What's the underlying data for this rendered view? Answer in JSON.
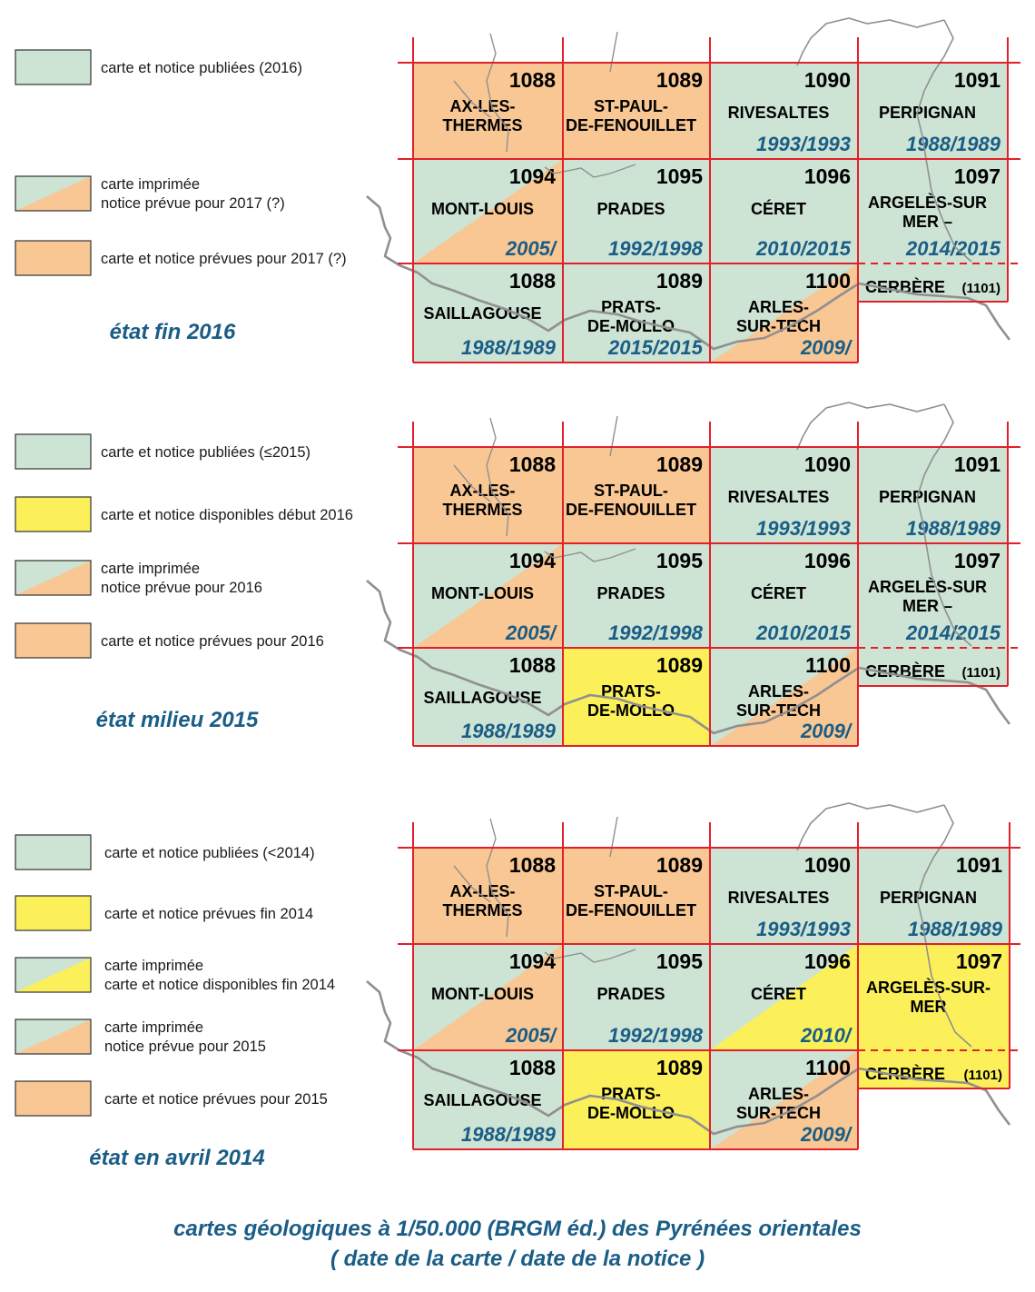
{
  "colors": {
    "green": "#cde3d4",
    "orange": "#f8c793",
    "yellow": "#fbf05a",
    "grid_red": "#e2202a",
    "border_gray": "#909090",
    "title_blue": "#1a5d86"
  },
  "panels": [
    {
      "state_label": "état fin 2016",
      "legend": [
        {
          "style": "green",
          "text": [
            "carte et notice publiées (2016)"
          ]
        },
        {
          "style": "green-orange",
          "text": [
            "carte imprimée",
            "notice prévue pour 2017 (?)"
          ]
        },
        {
          "style": "orange",
          "text": [
            "carte et notice prévues pour 2017 (?)"
          ]
        }
      ],
      "tiles": [
        {
          "number": "1088",
          "name": [
            "AX-LES-",
            "THERMES"
          ],
          "dates": "",
          "fill": "orange"
        },
        {
          "number": "1089",
          "name": [
            "ST-PAUL-",
            "DE-FENOUILLET"
          ],
          "dates": "",
          "fill": "orange"
        },
        {
          "number": "1090",
          "name": [
            "RIVESALTES"
          ],
          "dates": "1993/1993",
          "fill": "green"
        },
        {
          "number": "1091",
          "name": [
            "PERPIGNAN"
          ],
          "dates": "1988/1989",
          "fill": "green"
        },
        {
          "number": "1094",
          "name": [
            "MONT-LOUIS"
          ],
          "dates": "2005/",
          "fill": "green-orange"
        },
        {
          "number": "1095",
          "name": [
            "PRADES"
          ],
          "dates": "1992/1998",
          "fill": "green"
        },
        {
          "number": "1096",
          "name": [
            "CÉRET"
          ],
          "dates": "2010/2015",
          "fill": "green"
        },
        {
          "number": "1097",
          "name": [
            "ARGELÈS-SUR",
            "MER –"
          ],
          "dates": "2014/2015",
          "fill": "green"
        },
        {
          "number": "1088",
          "name": [
            "SAILLAGOUSE"
          ],
          "dates": "1988/1989",
          "fill": "green"
        },
        {
          "number": "1089",
          "name": [
            "PRATS-",
            "DE-MOLLO"
          ],
          "dates": "2015/2015",
          "fill": "green"
        },
        {
          "number": "1100",
          "name": [
            "ARLES-",
            "SUR-TECH"
          ],
          "dates": "2009/",
          "fill": "green-orange"
        },
        {
          "number": "",
          "name": [
            "CERBÈRE"
          ],
          "dates": "",
          "extra": "(1101)",
          "fill": "green"
        }
      ]
    },
    {
      "state_label": "état milieu 2015",
      "legend": [
        {
          "style": "green",
          "text": [
            "carte et notice publiées (≤2015)"
          ]
        },
        {
          "style": "yellow",
          "text": [
            "carte et notice disponibles début 2016"
          ]
        },
        {
          "style": "green-orange",
          "text": [
            "carte imprimée",
            "notice prévue pour 2016"
          ]
        },
        {
          "style": "orange",
          "text": [
            "carte et notice prévues pour 2016"
          ]
        }
      ],
      "tiles": [
        {
          "number": "1088",
          "name": [
            "AX-LES-",
            "THERMES"
          ],
          "dates": "",
          "fill": "orange"
        },
        {
          "number": "1089",
          "name": [
            "ST-PAUL-",
            "DE-FENOUILLET"
          ],
          "dates": "",
          "fill": "orange"
        },
        {
          "number": "1090",
          "name": [
            "RIVESALTES"
          ],
          "dates": "1993/1993",
          "fill": "green"
        },
        {
          "number": "1091",
          "name": [
            "PERPIGNAN"
          ],
          "dates": "1988/1989",
          "fill": "green"
        },
        {
          "number": "1094",
          "name": [
            "MONT-LOUIS"
          ],
          "dates": "2005/",
          "fill": "green-orange"
        },
        {
          "number": "1095",
          "name": [
            "PRADES"
          ],
          "dates": "1992/1998",
          "fill": "green"
        },
        {
          "number": "1096",
          "name": [
            "CÉRET"
          ],
          "dates": "2010/2015",
          "fill": "green"
        },
        {
          "number": "1097",
          "name": [
            "ARGELÈS-SUR",
            "MER –"
          ],
          "dates": "2014/2015",
          "fill": "green"
        },
        {
          "number": "1088",
          "name": [
            "SAILLAGOUSE"
          ],
          "dates": "1988/1989",
          "fill": "green"
        },
        {
          "number": "1089",
          "name": [
            "PRATS-",
            "DE-MOLLO"
          ],
          "dates": "",
          "fill": "yellow"
        },
        {
          "number": "1100",
          "name": [
            "ARLES-",
            "SUR-TECH"
          ],
          "dates": "2009/",
          "fill": "green-orange"
        },
        {
          "number": "",
          "name": [
            "CERBÈRE"
          ],
          "dates": "",
          "extra": "(1101)",
          "fill": "green"
        }
      ]
    },
    {
      "state_label": "état en avril 2014",
      "legend": [
        {
          "style": "green",
          "text": [
            "carte et notice publiées (<2014)"
          ]
        },
        {
          "style": "yellow",
          "text": [
            "carte et notice prévues fin 2014"
          ]
        },
        {
          "style": "green-yellow",
          "text": [
            "carte imprimée",
            "carte et notice disponibles fin 2014"
          ]
        },
        {
          "style": "green-orange",
          "text": [
            "carte imprimée",
            "notice prévue pour 2015"
          ]
        },
        {
          "style": "orange",
          "text": [
            "carte et notice prévues pour 2015"
          ]
        }
      ],
      "tiles": [
        {
          "number": "1088",
          "name": [
            "AX-LES-",
            "THERMES"
          ],
          "dates": "",
          "fill": "orange"
        },
        {
          "number": "1089",
          "name": [
            "ST-PAUL-",
            "DE-FENOUILLET"
          ],
          "dates": "",
          "fill": "orange"
        },
        {
          "number": "1090",
          "name": [
            "RIVESALTES"
          ],
          "dates": "1993/1993",
          "fill": "green"
        },
        {
          "number": "1091",
          "name": [
            "PERPIGNAN"
          ],
          "dates": "1988/1989",
          "fill": "green"
        },
        {
          "number": "1094",
          "name": [
            "MONT-LOUIS"
          ],
          "dates": "2005/",
          "fill": "green-orange"
        },
        {
          "number": "1095",
          "name": [
            "PRADES"
          ],
          "dates": "1992/1998",
          "fill": "green"
        },
        {
          "number": "1096",
          "name": [
            "CÉRET"
          ],
          "dates": "2010/",
          "fill": "green-yellow"
        },
        {
          "number": "1097",
          "name": [
            "ARGELÈS-SUR-",
            "MER"
          ],
          "dates": "",
          "fill": "yellow"
        },
        {
          "number": "1088",
          "name": [
            "SAILLAGOUSE"
          ],
          "dates": "1988/1989",
          "fill": "green"
        },
        {
          "number": "1089",
          "name": [
            "PRATS-",
            "DE-MOLLO"
          ],
          "dates": "",
          "fill": "yellow"
        },
        {
          "number": "1100",
          "name": [
            "ARLES-",
            "SUR-TECH"
          ],
          "dates": "2009/",
          "fill": "green-orange"
        },
        {
          "number": "",
          "name": [
            "CERBÈRE"
          ],
          "dates": "",
          "extra": "(1101)",
          "fill": "yellow"
        }
      ]
    }
  ],
  "caption": {
    "line1": "cartes géologiques à 1/50.000 (BRGM éd.) des Pyrénées orientales",
    "line2": "( date de la carte / date de la notice )"
  }
}
